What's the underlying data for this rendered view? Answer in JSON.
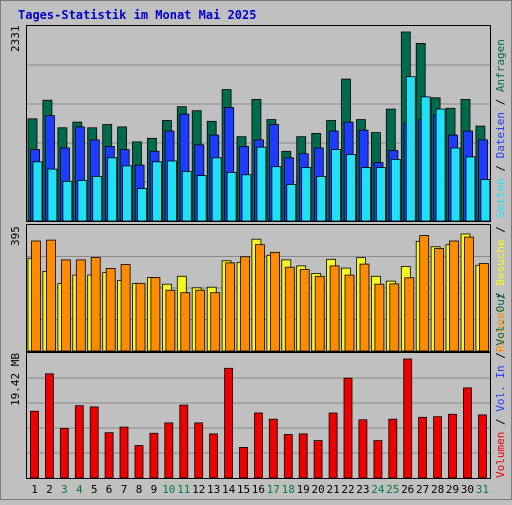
{
  "title": "Tages-Statistik im Monat Mai 2025",
  "colors": {
    "background": "#c0c0c0",
    "plot_background": "#c0c0c0",
    "grid": "#8a8a8a",
    "title": "#0000cc",
    "anfragen": "#006a4e",
    "dateien": "#1e3cff",
    "seiten": "#20e0f8",
    "besuche": "#f8f820",
    "rechner": "#ff8c00",
    "volumen": "#ee0000",
    "day_weekday": "#000000",
    "day_weekend": "#007a40"
  },
  "chart_data": [
    {
      "type": "bar",
      "name": "hits-files-pages",
      "ymax_label": "2331",
      "ylim": [
        0,
        2331
      ],
      "grid": true,
      "legend_position": "right",
      "legend": [
        {
          "label": "Anfragen",
          "color": "#006a4e"
        },
        {
          "label": "Dateien",
          "color": "#1e3cff"
        },
        {
          "label": "Seiten",
          "color": "#20e0f8"
        }
      ],
      "categories": [
        1,
        2,
        3,
        4,
        5,
        6,
        7,
        8,
        9,
        10,
        11,
        12,
        13,
        14,
        15,
        16,
        17,
        18,
        19,
        20,
        21,
        22,
        23,
        24,
        25,
        26,
        27,
        28,
        29,
        30,
        31
      ],
      "series": [
        {
          "name": "Anfragen",
          "values": [
            1260,
            1490,
            1150,
            1220,
            1150,
            1190,
            1160,
            975,
            1020,
            1240,
            1410,
            1360,
            1230,
            1620,
            1040,
            1500,
            1250,
            860,
            1040,
            1080,
            1240,
            1750,
            1250,
            1090,
            1380,
            2331,
            2190,
            1520,
            1390,
            1500,
            1170
          ]
        },
        {
          "name": "Dateien",
          "values": [
            880,
            1300,
            900,
            1160,
            1000,
            920,
            880,
            690,
            860,
            1110,
            1320,
            940,
            1060,
            1400,
            920,
            1000,
            1190,
            780,
            830,
            900,
            1110,
            1220,
            1120,
            720,
            870,
            1200,
            1250,
            1310,
            1060,
            1110,
            1000
          ]
        },
        {
          "name": "Seiten",
          "values": [
            730,
            640,
            490,
            500,
            550,
            780,
            680,
            400,
            730,
            740,
            610,
            560,
            780,
            600,
            570,
            910,
            670,
            450,
            660,
            550,
            880,
            820,
            660,
            660,
            760,
            1780,
            1530,
            1380,
            900,
            790,
            510
          ]
        }
      ]
    },
    {
      "type": "bar",
      "name": "visits-hosts",
      "ymax_label": "395",
      "ylim": [
        0,
        395
      ],
      "grid": true,
      "legend_position": "right",
      "legend": [
        {
          "label": "Besuche",
          "color": "#f8f820"
        },
        {
          "label": "Rechner",
          "color": "#ff8c00"
        }
      ],
      "categories": [
        1,
        2,
        3,
        4,
        5,
        6,
        7,
        8,
        9,
        10,
        11,
        12,
        13,
        14,
        15,
        16,
        17,
        18,
        19,
        20,
        21,
        22,
        23,
        24,
        25,
        26,
        27,
        28,
        29,
        30,
        31
      ],
      "series": [
        {
          "name": "Besuche",
          "values": [
            305,
            262,
            222,
            250,
            250,
            258,
            232,
            222,
            242,
            220,
            246,
            208,
            210,
            297,
            292,
            368,
            315,
            300,
            280,
            255,
            302,
            273,
            307,
            246,
            230,
            278,
            361,
            343,
            350,
            385,
            282
          ]
        },
        {
          "name": "Rechner",
          "values": [
            362,
            365,
            300,
            300,
            308,
            272,
            285,
            223,
            242,
            200,
            192,
            200,
            192,
            290,
            310,
            350,
            325,
            276,
            268,
            246,
            280,
            250,
            286,
            220,
            221,
            241,
            380,
            337,
            362,
            375,
            288
          ]
        }
      ]
    },
    {
      "type": "bar",
      "name": "traffic",
      "ymax_label": "19.42 MB",
      "ylim": [
        0,
        19.42
      ],
      "grid": true,
      "legend_position": "right",
      "legend": [
        {
          "label": "Volumen",
          "color": "#ee0000"
        },
        {
          "label": "Vol. In",
          "color": "#1e3cff"
        },
        {
          "label": "Vol. Out",
          "color": "#006a4e"
        }
      ],
      "categories": [
        1,
        2,
        3,
        4,
        5,
        6,
        7,
        8,
        9,
        10,
        11,
        12,
        13,
        14,
        15,
        16,
        17,
        18,
        19,
        20,
        21,
        22,
        23,
        24,
        25,
        26,
        27,
        28,
        29,
        30,
        31
      ],
      "series": [
        {
          "name": "Volumen",
          "values": [
            10.9,
            17.0,
            8.1,
            11.8,
            11.6,
            7.4,
            8.3,
            5.3,
            7.3,
            9.0,
            11.9,
            9.0,
            7.2,
            17.9,
            5.0,
            10.6,
            9.6,
            7.1,
            7.2,
            6.1,
            10.6,
            16.3,
            9.5,
            6.1,
            9.6,
            19.42,
            9.9,
            10.0,
            10.4,
            14.7,
            10.3
          ]
        }
      ]
    }
  ],
  "days": [
    "1",
    "2",
    "3",
    "4",
    "5",
    "6",
    "7",
    "8",
    "9",
    "10",
    "11",
    "12",
    "13",
    "14",
    "15",
    "16",
    "17",
    "18",
    "19",
    "20",
    "21",
    "22",
    "23",
    "24",
    "25",
    "26",
    "27",
    "28",
    "29",
    "30",
    "31"
  ],
  "weekend_days": [
    3,
    4,
    10,
    11,
    17,
    18,
    24,
    25,
    31
  ]
}
